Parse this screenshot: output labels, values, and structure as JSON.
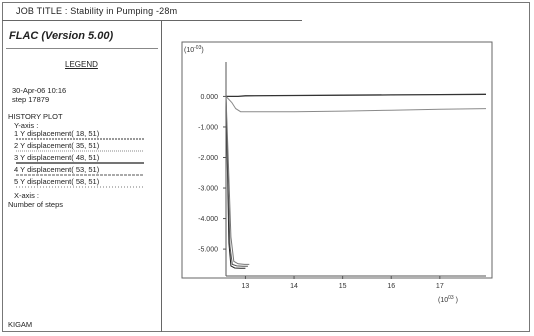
{
  "header": {
    "job_title": "JOB TITLE :  Stability in Pumping  -28m"
  },
  "app": {
    "title": "FLAC (Version 5.00)"
  },
  "legend": {
    "heading": "LEGEND",
    "date": "30-Apr-06  10:16",
    "step": "step   17879",
    "history_plot": "HISTORY PLOT",
    "y_axis_label": "Y-axis :",
    "x_axis_label": "X-axis :",
    "x_axis_desc": "Number of steps",
    "series": [
      {
        "label": "1 Y displacement( 18,  51)",
        "color": "#333333"
      },
      {
        "label": "2 Y displacement( 35,  51)",
        "color": "#8a8a8a"
      },
      {
        "label": "3 Y displacement( 48,  51)",
        "color": "#222222"
      },
      {
        "label": "4 Y displacement( 53,  51)",
        "color": "#555555"
      },
      {
        "label": "5 Y displacement( 58,  51)",
        "color": "#777777"
      }
    ],
    "footer": "KIGAM"
  },
  "chart_data": {
    "type": "line",
    "y_scale_label": "(10",
    "y_scale_exp": "-03",
    "x_scale_label": "(10",
    "x_scale_exp": "03",
    "y_ticks": [
      "0.000",
      "-1.000",
      "-2.000",
      "-3.000",
      "-4.000",
      "-5.000"
    ],
    "y_tick_values": [
      0,
      -1,
      -2,
      -3,
      -4,
      -5
    ],
    "x_ticks": [
      "13",
      "14",
      "15",
      "16",
      "17"
    ],
    "x_tick_values": [
      13,
      14,
      15,
      16,
      17
    ],
    "xlim": [
      12.6,
      17.95
    ],
    "ylim": [
      -5.75,
      0.8
    ],
    "grid": false,
    "series": [
      {
        "color": "#333333",
        "points": [
          [
            12.6,
            0.0
          ],
          [
            12.85,
            0.0
          ],
          [
            13.0,
            0.02
          ],
          [
            14.0,
            0.03
          ],
          [
            15.0,
            0.04
          ],
          [
            16.0,
            0.05
          ],
          [
            17.0,
            0.06
          ],
          [
            17.95,
            0.07
          ]
        ]
      },
      {
        "color": "#8a8a8a",
        "points": [
          [
            12.6,
            0.0
          ],
          [
            12.72,
            -0.2
          ],
          [
            12.8,
            -0.4
          ],
          [
            12.9,
            -0.5
          ],
          [
            13.1,
            -0.5
          ],
          [
            14.0,
            -0.5
          ],
          [
            15.0,
            -0.48
          ],
          [
            16.0,
            -0.45
          ],
          [
            17.0,
            -0.42
          ],
          [
            17.95,
            -0.4
          ]
        ]
      },
      {
        "color": "#222222",
        "points": [
          [
            12.6,
            0.0
          ],
          [
            12.63,
            -2.5
          ],
          [
            12.66,
            -4.8
          ],
          [
            12.7,
            -5.55
          ],
          [
            12.78,
            -5.62
          ],
          [
            12.9,
            -5.63
          ],
          [
            13.0,
            -5.63
          ]
        ]
      },
      {
        "color": "#555555",
        "points": [
          [
            12.6,
            0.0
          ],
          [
            12.64,
            -2.6
          ],
          [
            12.68,
            -4.9
          ],
          [
            12.73,
            -5.5
          ],
          [
            12.82,
            -5.55
          ],
          [
            12.95,
            -5.56
          ],
          [
            13.05,
            -5.56
          ]
        ]
      },
      {
        "color": "#777777",
        "points": [
          [
            12.6,
            0.0
          ],
          [
            12.65,
            -2.2
          ],
          [
            12.7,
            -4.6
          ],
          [
            12.76,
            -5.4
          ],
          [
            12.85,
            -5.48
          ],
          [
            12.98,
            -5.5
          ],
          [
            13.08,
            -5.5
          ]
        ]
      }
    ]
  }
}
